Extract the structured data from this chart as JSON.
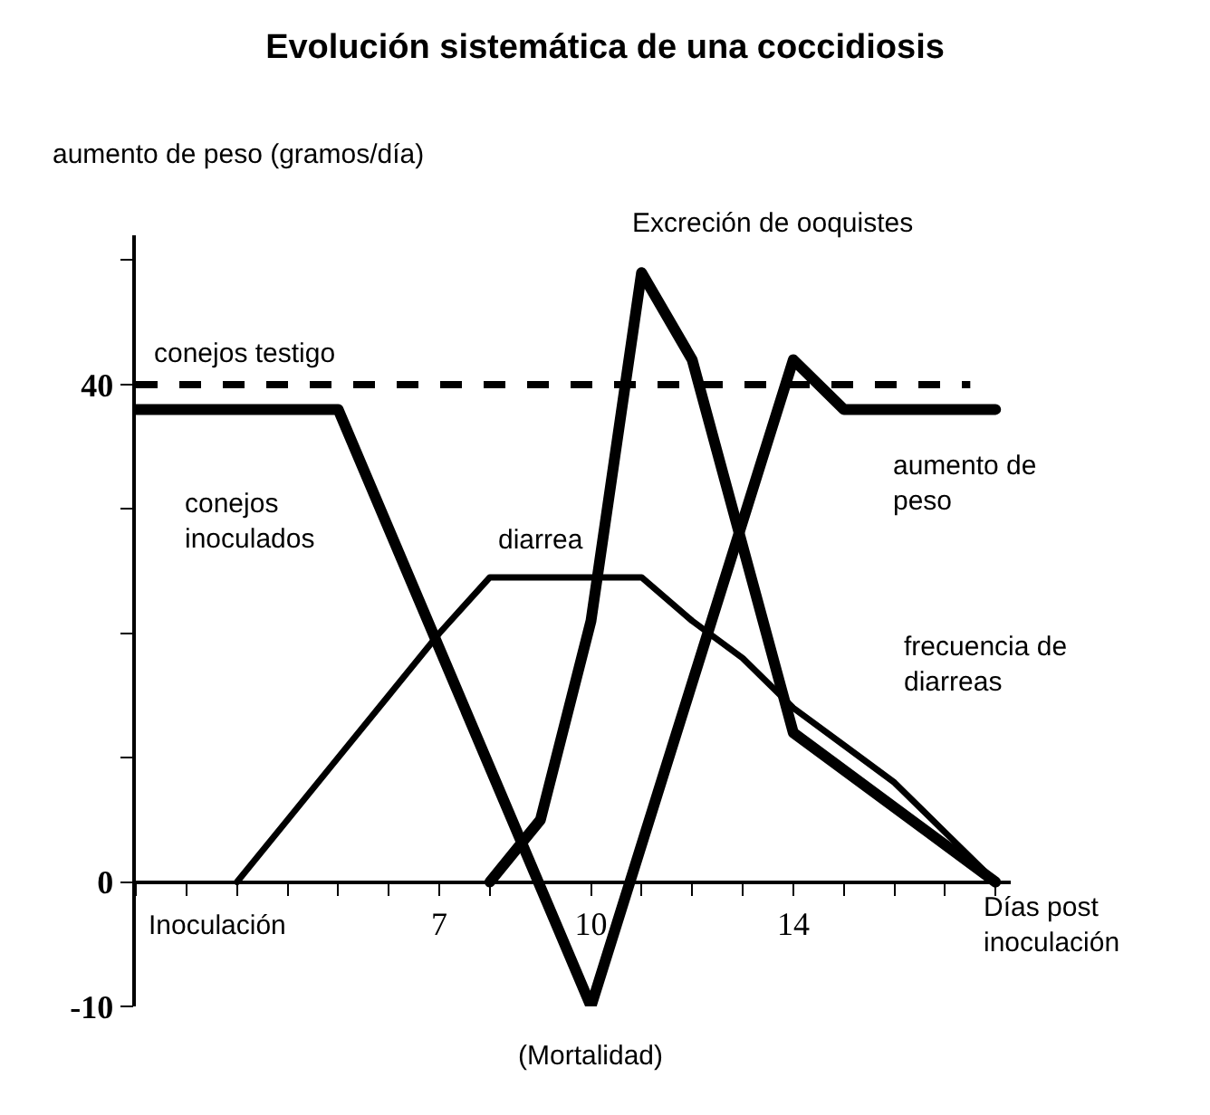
{
  "chart_data": {
    "type": "line",
    "title": "Evolución sistemática de una coccidiosis",
    "ylabel": "aumento de peso (gramos/día)",
    "xlabel": "Días post inoculación",
    "series": [
      {
        "color": "#000000",
        "x": [
          1,
          5,
          10,
          14,
          15,
          18
        ],
        "values": [
          38,
          38,
          -10,
          42,
          38,
          38
        ]
      },
      {
        "color": "#000000",
        "x": [
          8,
          9,
          10,
          11,
          12,
          14,
          18
        ],
        "values": [
          0,
          5,
          21,
          49,
          42,
          12,
          0
        ]
      },
      {
        "color": "#000000",
        "x": [
          3,
          4,
          5,
          6,
          7,
          8,
          11,
          12,
          13,
          14,
          15,
          16,
          17,
          18
        ],
        "values": [
          0,
          5,
          10,
          15,
          20,
          24.5,
          24.5,
          21,
          18,
          14,
          11,
          8,
          4,
          0
        ]
      }
    ],
    "xlim": [
      1,
      18.3
    ],
    "ylim": [
      -10,
      52
    ],
    "xticks": [
      {
        "value": 1,
        "label": null
      },
      {
        "value": 2,
        "label": null
      },
      {
        "value": 3,
        "label": null
      },
      {
        "value": 4,
        "label": null
      },
      {
        "value": 5,
        "label": null
      },
      {
        "value": 6,
        "label": null
      },
      7,
      {
        "value": 8,
        "label": null
      },
      {
        "value": 9,
        "label": null
      },
      10,
      {
        "value": 11,
        "label": null
      },
      {
        "value": 12,
        "label": null
      },
      {
        "value": 13,
        "label": null
      },
      14,
      {
        "value": 15,
        "label": null
      },
      {
        "value": 16,
        "label": null
      },
      {
        "value": 17,
        "label": null
      },
      {
        "value": 18,
        "label": null
      }
    ],
    "yticks": [
      -10,
      0,
      {
        "value": 10,
        "label": null
      },
      {
        "value": 20,
        "label": null
      },
      {
        "value": 30,
        "label": null
      },
      40,
      {
        "value": 50,
        "label": null
      }
    ],
    "ref_lines": [
      {
        "axis": "y",
        "value": 40,
        "label": "conejos testigo",
        "line_style": "dashed",
        "color": "#000000"
      }
    ],
    "annotations": [
      "Excreción de ooquistes",
      "conejos inoculados",
      "diarrea",
      "aumento de peso",
      "frecuencia de diarreas",
      "Inoculación",
      "(Mortalidad)"
    ],
    "marker": "none",
    "line_style": "solid"
  }
}
